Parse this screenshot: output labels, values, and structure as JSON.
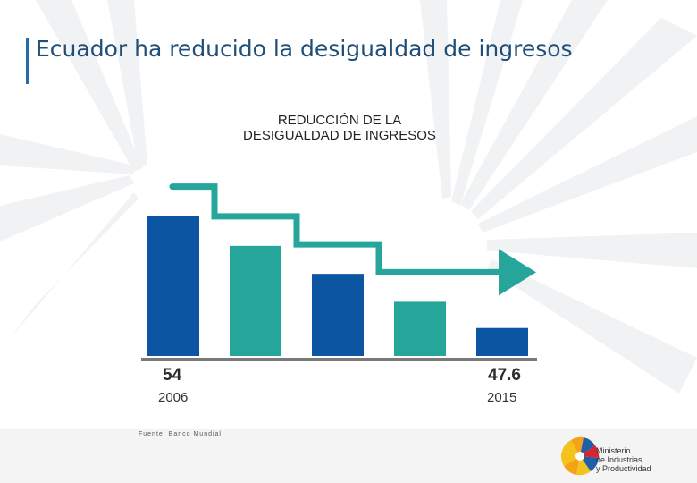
{
  "header": {
    "title": "Ecuador ha reducido la desigualdad de ingresos"
  },
  "chart_data": {
    "type": "bar",
    "title_lines": [
      "REDUCCIÓN DE LA",
      "DESIGUALDAD DE INGRESOS"
    ],
    "categories": [
      "2006",
      "",
      "",
      "",
      "2015"
    ],
    "values": [
      54,
      52.3,
      50.7,
      49.1,
      47.6
    ],
    "data_labels": [
      {
        "text": "54",
        "index": 0
      },
      {
        "text": "47.6",
        "index": 4
      }
    ],
    "year_labels": [
      {
        "text": "2006",
        "index": 0
      },
      {
        "text": "2015",
        "index": 4
      }
    ],
    "ylim": [
      46,
      54.8
    ],
    "bar_colors": [
      "#0b55a3",
      "#26a69a",
      "#0b55a3",
      "#26a69a",
      "#0b55a3"
    ],
    "arrow_color": "#26a69a",
    "baseline_color": "#7a7a7a",
    "trend": "decreasing"
  },
  "footer": {
    "source": "Fuente: Banco Mundial",
    "logo_lines": [
      "Ministerio",
      "de Industrias",
      "y Productividad"
    ]
  }
}
